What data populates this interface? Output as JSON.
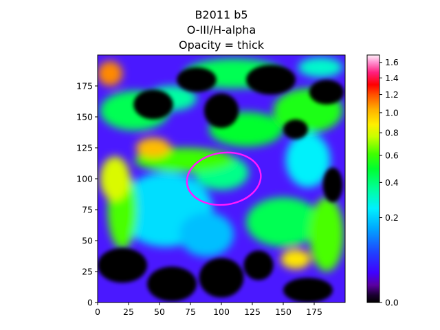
{
  "chart_data": {
    "type": "heatmap",
    "title_lines": [
      "B2011 b5",
      "O-III/H-alpha",
      "Opacity = thick"
    ],
    "xlabel": "",
    "ylabel": "",
    "xlim": [
      0,
      200
    ],
    "ylim": [
      0,
      200
    ],
    "x_ticks": [
      0,
      25,
      50,
      75,
      100,
      125,
      150,
      175
    ],
    "y_ticks": [
      0,
      25,
      50,
      75,
      100,
      125,
      150,
      175
    ],
    "grid": false,
    "colormap": "gist_ncar-like",
    "colorbar": {
      "range": [
        0.0,
        1.7
      ],
      "ticks": [
        0.0,
        0.2,
        0.4,
        0.6,
        0.8,
        1.0,
        1.2,
        1.4,
        1.6
      ],
      "tick_labels": [
        "0.0",
        "0.2",
        "0.4",
        "0.6",
        "0.8",
        "1.0",
        "1.2",
        "1.4",
        "1.6"
      ],
      "scale": "nonlinear (sqrt-like)"
    },
    "overlay": {
      "shape": "ellipse",
      "center": [
        102,
        100
      ],
      "width": 60,
      "height": 42,
      "color": "#ff1aff"
    },
    "regions": [
      {
        "x": 55,
        "y": 75,
        "rx": 38,
        "ry": 30,
        "value": 0.22
      },
      {
        "x": 88,
        "y": 55,
        "rx": 22,
        "ry": 18,
        "value": 0.18
      },
      {
        "x": 170,
        "y": 115,
        "rx": 18,
        "ry": 22,
        "value": 0.25
      },
      {
        "x": 100,
        "y": 105,
        "rx": 22,
        "ry": 14,
        "value": 0.38
      },
      {
        "x": 70,
        "y": 115,
        "rx": 40,
        "ry": 10,
        "value": 0.6
      },
      {
        "x": 20,
        "y": 75,
        "rx": 12,
        "ry": 32,
        "value": 0.62
      },
      {
        "x": 30,
        "y": 155,
        "rx": 28,
        "ry": 16,
        "value": 0.45
      },
      {
        "x": 120,
        "y": 140,
        "rx": 30,
        "ry": 14,
        "value": 0.5
      },
      {
        "x": 150,
        "y": 65,
        "rx": 30,
        "ry": 20,
        "value": 0.45
      },
      {
        "x": 185,
        "y": 55,
        "rx": 14,
        "ry": 30,
        "value": 0.62
      },
      {
        "x": 170,
        "y": 155,
        "rx": 28,
        "ry": 18,
        "value": 0.55
      },
      {
        "x": 110,
        "y": 185,
        "rx": 40,
        "ry": 12,
        "value": 0.45
      },
      {
        "x": 14,
        "y": 100,
        "rx": 12,
        "ry": 18,
        "value": 0.8
      },
      {
        "x": 60,
        "y": 165,
        "rx": 20,
        "ry": 10,
        "value": 0.35
      },
      {
        "x": 45,
        "y": 125,
        "rx": 14,
        "ry": 8,
        "value": 1.0
      },
      {
        "x": 160,
        "y": 35,
        "rx": 12,
        "ry": 8,
        "value": 0.9
      },
      {
        "x": 10,
        "y": 185,
        "rx": 10,
        "ry": 10,
        "value": 1.1
      },
      {
        "x": 180,
        "y": 190,
        "rx": 18,
        "ry": 8,
        "value": 0.3
      }
    ],
    "dark_regions": [
      {
        "x": 45,
        "y": 160,
        "rx": 16,
        "ry": 12
      },
      {
        "x": 80,
        "y": 180,
        "rx": 16,
        "ry": 10
      },
      {
        "x": 100,
        "y": 155,
        "rx": 14,
        "ry": 14
      },
      {
        "x": 140,
        "y": 180,
        "rx": 20,
        "ry": 12
      },
      {
        "x": 185,
        "y": 170,
        "rx": 14,
        "ry": 10
      },
      {
        "x": 160,
        "y": 140,
        "rx": 10,
        "ry": 8
      },
      {
        "x": 20,
        "y": 30,
        "rx": 20,
        "ry": 14
      },
      {
        "x": 60,
        "y": 15,
        "rx": 20,
        "ry": 14
      },
      {
        "x": 100,
        "y": 20,
        "rx": 18,
        "ry": 16
      },
      {
        "x": 130,
        "y": 30,
        "rx": 12,
        "ry": 12
      },
      {
        "x": 170,
        "y": 10,
        "rx": 20,
        "ry": 10
      },
      {
        "x": 190,
        "y": 95,
        "rx": 8,
        "ry": 14
      }
    ]
  }
}
